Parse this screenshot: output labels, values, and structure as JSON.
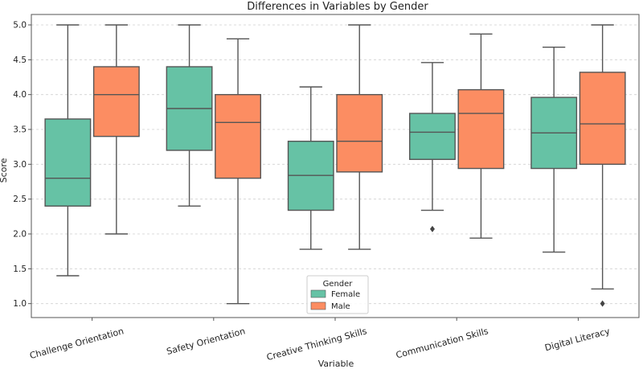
{
  "chart_data": {
    "type": "boxplot",
    "title": "Differences in Variables by Gender",
    "xlabel": "Variable",
    "ylabel": "Score",
    "ylim": [
      0.8,
      5.15
    ],
    "yticks": [
      "1.0",
      "1.5",
      "2.0",
      "2.5",
      "3.0",
      "3.5",
      "4.0",
      "4.5",
      "5.0"
    ],
    "grid": true,
    "categories": [
      "Challenge Orientation",
      "Safety Orientation",
      "Creative Thinking Skills",
      "Communication Skills",
      "Digital Literacy"
    ],
    "legend": {
      "title": "Gender",
      "position": "bottom-center"
    },
    "series": [
      {
        "name": "Female",
        "color": "#66c2a5",
        "boxes": [
          {
            "whislo": 1.4,
            "q1": 2.4,
            "med": 2.8,
            "q3": 3.65,
            "whishi": 5.0,
            "fliers": []
          },
          {
            "whislo": 2.4,
            "q1": 3.2,
            "med": 3.8,
            "q3": 4.4,
            "whishi": 5.0,
            "fliers": []
          },
          {
            "whislo": 1.78,
            "q1": 2.34,
            "med": 2.84,
            "q3": 3.33,
            "whishi": 4.11,
            "fliers": []
          },
          {
            "whislo": 2.34,
            "q1": 3.07,
            "med": 3.46,
            "q3": 3.73,
            "whishi": 4.46,
            "fliers": [
              2.07
            ]
          },
          {
            "whislo": 1.74,
            "q1": 2.94,
            "med": 3.45,
            "q3": 3.96,
            "whishi": 4.68,
            "fliers": []
          }
        ]
      },
      {
        "name": "Male",
        "color": "#fc8d62",
        "boxes": [
          {
            "whislo": 2.0,
            "q1": 3.4,
            "med": 4.0,
            "q3": 4.4,
            "whishi": 5.0,
            "fliers": []
          },
          {
            "whislo": 1.0,
            "q1": 2.8,
            "med": 3.6,
            "q3": 4.0,
            "whishi": 4.8,
            "fliers": []
          },
          {
            "whislo": 1.78,
            "q1": 2.89,
            "med": 3.33,
            "q3": 4.0,
            "whishi": 5.0,
            "fliers": []
          },
          {
            "whislo": 1.94,
            "q1": 2.94,
            "med": 3.73,
            "q3": 4.07,
            "whishi": 4.87,
            "fliers": []
          },
          {
            "whislo": 1.21,
            "q1": 3.0,
            "med": 3.58,
            "q3": 4.32,
            "whishi": 5.0,
            "fliers": [
              1.0
            ]
          }
        ]
      }
    ]
  }
}
